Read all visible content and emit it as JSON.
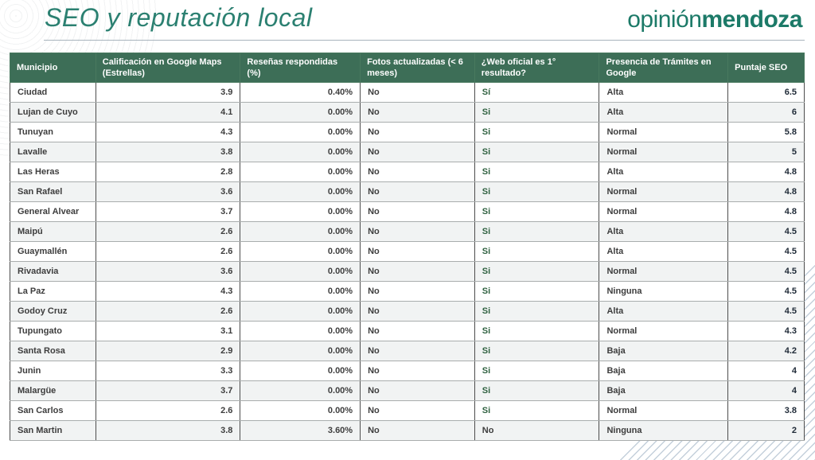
{
  "header": {
    "title": "SEO y reputación local",
    "logo": {
      "light": "opinión",
      "bold": "mendoza"
    }
  },
  "colors": {
    "header_bg": "#3d6e57",
    "title": "#2b8071",
    "logo": "#1c7a68",
    "si_green": "#2f6140",
    "text_dark": "#3d3d3d",
    "score_dark": "#202b38",
    "row_alt": "#f1f3f3"
  },
  "table": {
    "columns": [
      {
        "key": "municipio",
        "label": "Municipio",
        "align": "left",
        "width": "10.8%"
      },
      {
        "key": "calificacion-google",
        "label": "Calificación en Google Maps (Estrellas)",
        "align": "right",
        "width": "18.2%"
      },
      {
        "key": "resenas-respondidas",
        "label": "Reseñas respondidas (%)",
        "align": "right",
        "width": "15.1%"
      },
      {
        "key": "fotos-actualizadas",
        "label": "Fotos actualizadas (< 6 meses)",
        "align": "left",
        "width": "14.4%"
      },
      {
        "key": "web-oficial",
        "label": "¿Web oficial es 1° resultado?",
        "align": "left",
        "width": "15.7%"
      },
      {
        "key": "presencia-tramites",
        "label": "Presencia de Trámites en Google",
        "align": "left",
        "width": "16.2%"
      },
      {
        "key": "puntaje-seo",
        "label": "Puntaje SEO",
        "align": "right",
        "width": "9.6%"
      }
    ],
    "rows": [
      [
        "Ciudad",
        "3.9",
        "0.40%",
        "No",
        "Sí",
        "Alta",
        "6.5"
      ],
      [
        "Lujan de Cuyo",
        "4.1",
        "0.00%",
        "No",
        "Si",
        "Alta",
        "6"
      ],
      [
        "Tunuyan",
        "4.3",
        "0.00%",
        "No",
        "Si",
        "Normal",
        "5.8"
      ],
      [
        "Lavalle",
        "3.8",
        "0.00%",
        "No",
        "Si",
        "Normal",
        "5"
      ],
      [
        "Las Heras",
        "2.8",
        "0.00%",
        "No",
        "Si",
        "Alta",
        "4.8"
      ],
      [
        "San Rafael",
        "3.6",
        "0.00%",
        "No",
        "Si",
        "Normal",
        "4.8"
      ],
      [
        "General Alvear",
        "3.7",
        "0.00%",
        "No",
        "Si",
        "Normal",
        "4.8"
      ],
      [
        "Maipú",
        "2.6",
        "0.00%",
        "No",
        "Si",
        "Alta",
        "4.5"
      ],
      [
        "Guaymallén",
        "2.6",
        "0.00%",
        "No",
        "Si",
        "Alta",
        "4.5"
      ],
      [
        "Rivadavia",
        "3.6",
        "0.00%",
        "No",
        "Si",
        "Normal",
        "4.5"
      ],
      [
        "La Paz",
        "4.3",
        "0.00%",
        "No",
        "Si",
        "Ninguna",
        "4.5"
      ],
      [
        "Godoy Cruz",
        "2.6",
        "0.00%",
        "No",
        "Si",
        "Alta",
        "4.5"
      ],
      [
        "Tupungato",
        "3.1",
        "0.00%",
        "No",
        "Si",
        "Normal",
        "4.3"
      ],
      [
        "Santa Rosa",
        "2.9",
        "0.00%",
        "No",
        "Si",
        "Baja",
        "4.2"
      ],
      [
        "Junin",
        "3.3",
        "0.00%",
        "No",
        "Si",
        "Baja",
        "4"
      ],
      [
        "Malargüe",
        "3.7",
        "0.00%",
        "No",
        "Si",
        "Baja",
        "4"
      ],
      [
        "San Carlos",
        "2.6",
        "0.00%",
        "No",
        "Si",
        "Normal",
        "3.8"
      ],
      [
        "San Martin",
        "3.8",
        "3.60%",
        "No",
        "No",
        "Ninguna",
        "2"
      ]
    ]
  }
}
